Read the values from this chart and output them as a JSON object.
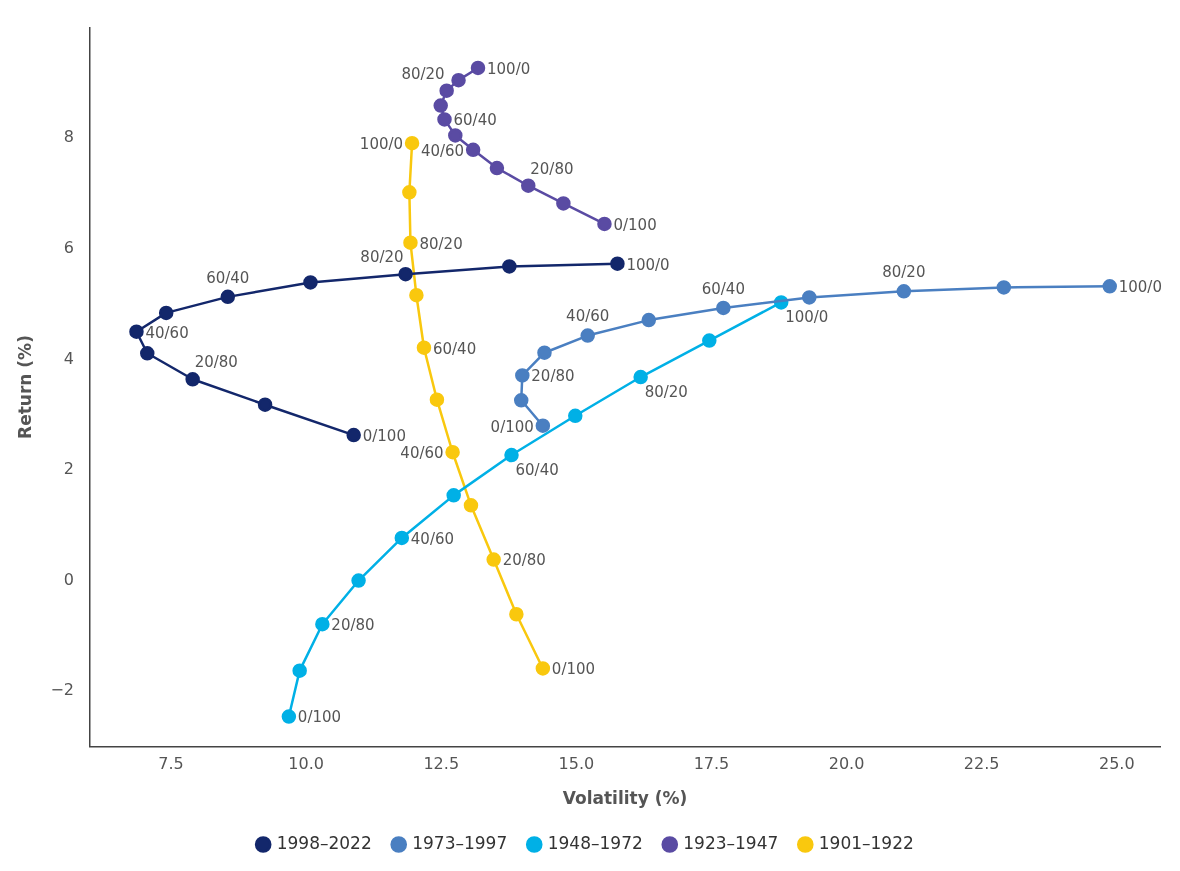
{
  "chart_data": {
    "type": "line",
    "xlabel": "Volatility (%)",
    "ylabel": "Return (%)",
    "xlim": [
      6,
      25.8
    ],
    "xticks": [
      {
        "value": 7.5,
        "label": "7.5"
      },
      {
        "value": 10,
        "label": "10.0"
      },
      {
        "value": 12.5,
        "label": "12.5"
      },
      {
        "value": 15,
        "label": "15.0"
      },
      {
        "value": 17.5,
        "label": "17.5"
      },
      {
        "value": 20,
        "label": "20.0"
      },
      {
        "value": 22.5,
        "label": "22.5"
      },
      {
        "value": 25,
        "label": "25.0"
      }
    ],
    "ylim": [
      -3,
      10
    ],
    "yticks": [
      -2,
      0,
      2,
      4,
      6,
      8
    ],
    "grid": false,
    "legend": "bottom",
    "marker": "circle",
    "line_style": "solid",
    "series": [
      {
        "name": "1998–2022",
        "color": "#13276b",
        "x": [
          10.88,
          9.24,
          7.9,
          7.06,
          6.86,
          7.41,
          8.55,
          10.08,
          11.84,
          13.76,
          15.76
        ],
        "values": [
          2.63,
          3.18,
          3.64,
          4.11,
          4.5,
          4.84,
          5.13,
          5.39,
          5.54,
          5.68,
          5.73
        ],
        "value_labels": [
          "0/100",
          null,
          "20/80",
          null,
          "40/60",
          null,
          "60/40",
          null,
          "80/20",
          null,
          "100/0"
        ]
      },
      {
        "name": "1973–1997",
        "color": "#4a7fc1",
        "x": [
          14.38,
          13.98,
          14.0,
          14.41,
          15.21,
          16.34,
          17.72,
          19.31,
          21.06,
          22.91,
          24.87
        ],
        "values": [
          2.8,
          3.26,
          3.71,
          4.12,
          4.43,
          4.71,
          4.93,
          5.12,
          5.23,
          5.3,
          5.32
        ],
        "value_labels": [
          "0/100",
          null,
          "20/80",
          null,
          "40/60",
          null,
          "60/40",
          null,
          "80/20",
          null,
          "100/0"
        ]
      },
      {
        "name": "1948–1972",
        "color": "#00b0e6",
        "x": [
          9.68,
          9.88,
          10.3,
          10.97,
          11.77,
          12.73,
          13.8,
          14.98,
          16.19,
          17.46,
          18.79
        ],
        "values": [
          -2.46,
          -1.63,
          -0.79,
          0.0,
          0.77,
          1.54,
          2.27,
          2.98,
          3.68,
          4.34,
          5.03
        ],
        "value_labels": [
          "0/100",
          null,
          "20/80",
          null,
          "40/60",
          null,
          "60/40",
          null,
          "80/20",
          null,
          "100/0"
        ]
      },
      {
        "name": "1923–1947",
        "color": "#5a4ba3",
        "x": [
          15.52,
          14.76,
          14.11,
          13.53,
          13.09,
          12.76,
          12.56,
          12.49,
          12.6,
          12.82,
          13.18
        ],
        "values": [
          6.45,
          6.82,
          7.14,
          7.46,
          7.79,
          8.05,
          8.34,
          8.59,
          8.86,
          9.05,
          9.27
        ],
        "value_labels": [
          "0/100",
          null,
          "20/80",
          null,
          "40/60",
          null,
          "60/40",
          null,
          "80/20",
          null,
          "100/0"
        ]
      },
      {
        "name": "1901–1922",
        "color": "#f9c80e",
        "x": [
          14.38,
          13.89,
          13.47,
          13.05,
          12.71,
          12.42,
          12.18,
          12.04,
          11.93,
          11.91,
          11.96
        ],
        "values": [
          -1.59,
          -0.61,
          0.38,
          1.36,
          2.32,
          3.27,
          4.21,
          5.16,
          6.11,
          7.02,
          7.91
        ],
        "value_labels": [
          "0/100",
          null,
          "20/80",
          null,
          "40/60",
          null,
          "60/40",
          null,
          "80/20",
          null,
          "100/0"
        ]
      }
    ]
  }
}
